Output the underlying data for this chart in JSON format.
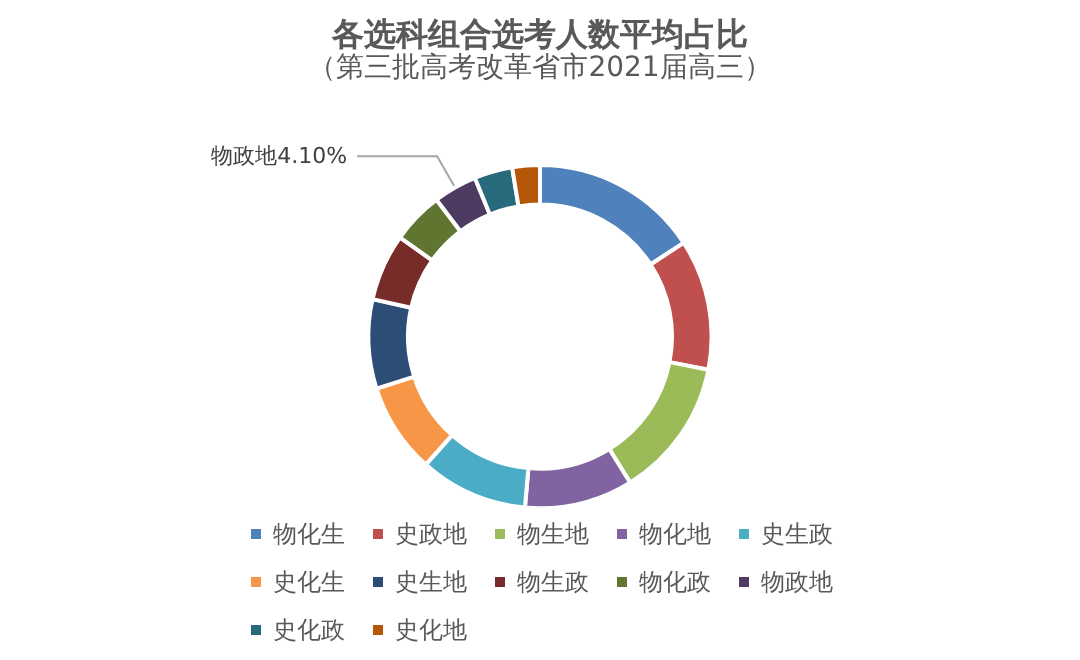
{
  "chart_data": {
    "type": "donut",
    "title": "各选科组合选考人数平均占比",
    "subtitle": "（第三批高考改革省市2021届高三）",
    "categories": [
      "物化生",
      "史政地",
      "物生地",
      "物化地",
      "史生政",
      "史化生",
      "史生地",
      "物生政",
      "物化政",
      "物政地",
      "史化政",
      "史化地"
    ],
    "values": [
      15.8,
      12.3,
      13.1,
      10.2,
      10.2,
      8.5,
      8.4,
      6.3,
      4.9,
      4.1,
      3.6,
      2.6
    ],
    "value_labels": [
      null,
      null,
      null,
      null,
      null,
      null,
      null,
      null,
      null,
      "4.10%",
      null,
      null
    ],
    "colors": [
      "#4f81bd",
      "#c0504d",
      "#9bbb59",
      "#8064a2",
      "#4bacc6",
      "#f79646",
      "#2c4d75",
      "#772c2a",
      "#5f7530",
      "#4d3b62",
      "#276a7c",
      "#b65708"
    ],
    "legend": "bottom"
  }
}
